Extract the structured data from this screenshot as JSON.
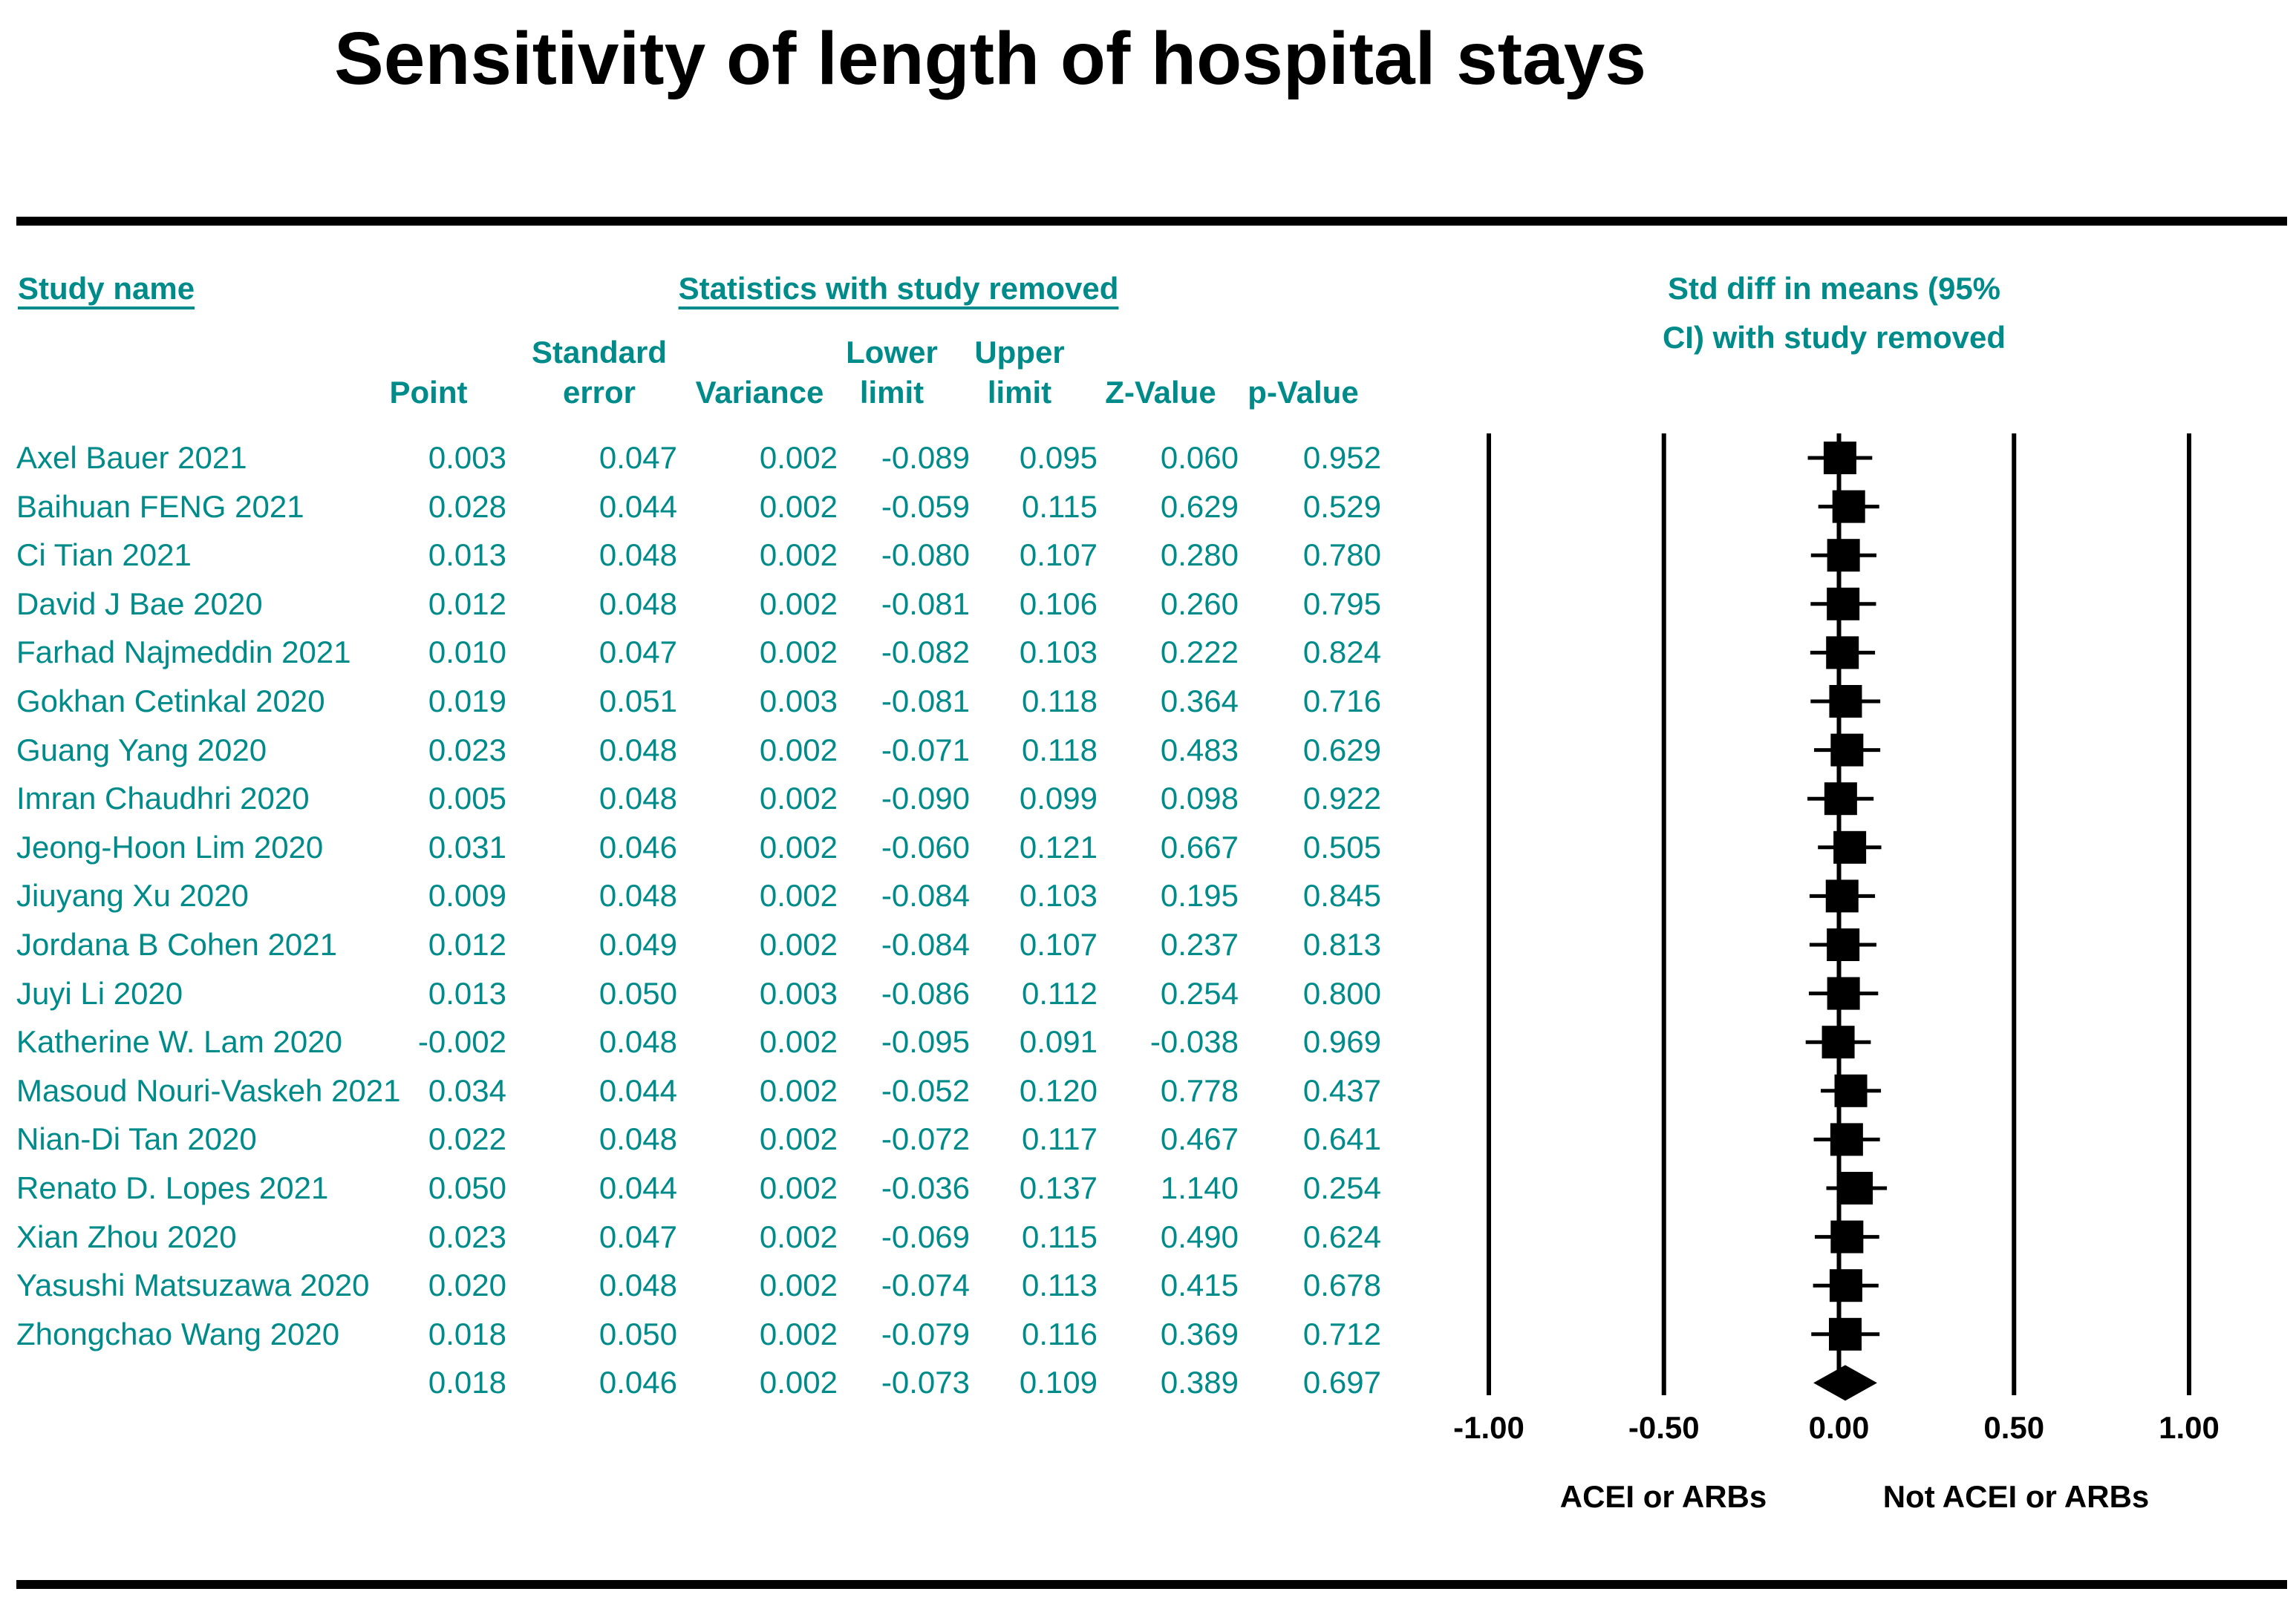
{
  "title": "Sensitivity of length of hospital stays",
  "headers": {
    "study_name": "Study name",
    "statistics_group": "Statistics with study removed",
    "plot_title_line1": "Std diff in means (95%",
    "plot_title_line2": "CI) with study removed",
    "columns": [
      {
        "line1": "",
        "line2": "Point"
      },
      {
        "line1": "Standard",
        "line2": "error"
      },
      {
        "line1": "",
        "line2": "Variance"
      },
      {
        "line1": "Lower",
        "line2": "limit"
      },
      {
        "line1": "Upper",
        "line2": "limit"
      },
      {
        "line1": "",
        "line2": "Z-Value"
      },
      {
        "line1": "",
        "line2": "p-Value"
      }
    ]
  },
  "rows": [
    {
      "study": "Axel Bauer 2021",
      "point": "0.003",
      "se": "0.047",
      "variance": "0.002",
      "lower": "-0.089",
      "upper": "0.095",
      "z": "0.060",
      "p": "0.952"
    },
    {
      "study": "Baihuan FENG 2021",
      "point": "0.028",
      "se": "0.044",
      "variance": "0.002",
      "lower": "-0.059",
      "upper": "0.115",
      "z": "0.629",
      "p": "0.529"
    },
    {
      "study": "Ci Tian 2021",
      "point": "0.013",
      "se": "0.048",
      "variance": "0.002",
      "lower": "-0.080",
      "upper": "0.107",
      "z": "0.280",
      "p": "0.780"
    },
    {
      "study": "David J Bae 2020",
      "point": "0.012",
      "se": "0.048",
      "variance": "0.002",
      "lower": "-0.081",
      "upper": "0.106",
      "z": "0.260",
      "p": "0.795"
    },
    {
      "study": "Farhad Najmeddin 2021",
      "point": "0.010",
      "se": "0.047",
      "variance": "0.002",
      "lower": "-0.082",
      "upper": "0.103",
      "z": "0.222",
      "p": "0.824"
    },
    {
      "study": "Gokhan Cetinkal 2020",
      "point": "0.019",
      "se": "0.051",
      "variance": "0.003",
      "lower": "-0.081",
      "upper": "0.118",
      "z": "0.364",
      "p": "0.716"
    },
    {
      "study": "Guang Yang 2020",
      "point": "0.023",
      "se": "0.048",
      "variance": "0.002",
      "lower": "-0.071",
      "upper": "0.118",
      "z": "0.483",
      "p": "0.629"
    },
    {
      "study": "Imran Chaudhri 2020",
      "point": "0.005",
      "se": "0.048",
      "variance": "0.002",
      "lower": "-0.090",
      "upper": "0.099",
      "z": "0.098",
      "p": "0.922"
    },
    {
      "study": "Jeong-Hoon Lim 2020",
      "point": "0.031",
      "se": "0.046",
      "variance": "0.002",
      "lower": "-0.060",
      "upper": "0.121",
      "z": "0.667",
      "p": "0.505"
    },
    {
      "study": "Jiuyang Xu 2020",
      "point": "0.009",
      "se": "0.048",
      "variance": "0.002",
      "lower": "-0.084",
      "upper": "0.103",
      "z": "0.195",
      "p": "0.845"
    },
    {
      "study": "Jordana B Cohen 2021",
      "point": "0.012",
      "se": "0.049",
      "variance": "0.002",
      "lower": "-0.084",
      "upper": "0.107",
      "z": "0.237",
      "p": "0.813"
    },
    {
      "study": "Juyi Li 2020",
      "point": "0.013",
      "se": "0.050",
      "variance": "0.003",
      "lower": "-0.086",
      "upper": "0.112",
      "z": "0.254",
      "p": "0.800"
    },
    {
      "study": "Katherine W. Lam 2020",
      "point": "-0.002",
      "se": "0.048",
      "variance": "0.002",
      "lower": "-0.095",
      "upper": "0.091",
      "z": "-0.038",
      "p": "0.969"
    },
    {
      "study": "Masoud Nouri-Vaskeh 2021",
      "point": "0.034",
      "se": "0.044",
      "variance": "0.002",
      "lower": "-0.052",
      "upper": "0.120",
      "z": "0.778",
      "p": "0.437"
    },
    {
      "study": "Nian-Di Tan 2020",
      "point": "0.022",
      "se": "0.048",
      "variance": "0.002",
      "lower": "-0.072",
      "upper": "0.117",
      "z": "0.467",
      "p": "0.641"
    },
    {
      "study": "Renato D. Lopes 2021",
      "point": "0.050",
      "se": "0.044",
      "variance": "0.002",
      "lower": "-0.036",
      "upper": "0.137",
      "z": "1.140",
      "p": "0.254"
    },
    {
      "study": "Xian Zhou 2020",
      "point": "0.023",
      "se": "0.047",
      "variance": "0.002",
      "lower": "-0.069",
      "upper": "0.115",
      "z": "0.490",
      "p": "0.624"
    },
    {
      "study": "Yasushi Matsuzawa 2020",
      "point": "0.020",
      "se": "0.048",
      "variance": "0.002",
      "lower": "-0.074",
      "upper": "0.113",
      "z": "0.415",
      "p": "0.678"
    },
    {
      "study": "Zhongchao Wang 2020",
      "point": "0.018",
      "se": "0.050",
      "variance": "0.002",
      "lower": "-0.079",
      "upper": "0.116",
      "z": "0.369",
      "p": "0.712"
    }
  ],
  "summary": {
    "study": "",
    "point": "0.018",
    "se": "0.046",
    "variance": "0.002",
    "lower": "-0.073",
    "upper": "0.109",
    "z": "0.389",
    "p": "0.697"
  },
  "chart_data": {
    "type": "forest",
    "title": "Std diff in means (95% CI) with study removed",
    "xlim": [
      -1.0,
      1.0
    ],
    "ticks": [
      -1.0,
      -0.5,
      0.0,
      0.5,
      1.0
    ],
    "tick_labels": [
      "-1.00",
      "-0.50",
      "0.00",
      "0.50",
      "1.00"
    ],
    "left_label": "ACEI or ARBs",
    "right_label": "Not ACEI or ARBs",
    "studies": [
      "Axel Bauer 2021",
      "Baihuan FENG 2021",
      "Ci Tian 2021",
      "David J Bae 2020",
      "Farhad Najmeddin 2021",
      "Gokhan Cetinkal 2020",
      "Guang Yang 2020",
      "Imran Chaudhri 2020",
      "Jeong-Hoon Lim 2020",
      "Jiuyang Xu 2020",
      "Jordana B Cohen 2021",
      "Juyi Li 2020",
      "Katherine W. Lam 2020",
      "Masoud Nouri-Vaskeh 2021",
      "Nian-Di Tan 2020",
      "Renato D. Lopes 2021",
      "Xian Zhou 2020",
      "Yasushi Matsuzawa 2020",
      "Zhongchao Wang 2020"
    ],
    "point": [
      0.003,
      0.028,
      0.013,
      0.012,
      0.01,
      0.019,
      0.023,
      0.005,
      0.031,
      0.009,
      0.012,
      0.013,
      -0.002,
      0.034,
      0.022,
      0.05,
      0.023,
      0.02,
      0.018
    ],
    "lower": [
      -0.089,
      -0.059,
      -0.08,
      -0.081,
      -0.082,
      -0.081,
      -0.071,
      -0.09,
      -0.06,
      -0.084,
      -0.084,
      -0.086,
      -0.095,
      -0.052,
      -0.072,
      -0.036,
      -0.069,
      -0.074,
      -0.079
    ],
    "upper": [
      0.095,
      0.115,
      0.107,
      0.106,
      0.103,
      0.118,
      0.118,
      0.099,
      0.121,
      0.103,
      0.107,
      0.112,
      0.091,
      0.12,
      0.117,
      0.137,
      0.115,
      0.113,
      0.116
    ],
    "summary": {
      "point": 0.018,
      "lower": -0.073,
      "upper": 0.109
    },
    "colors": {
      "text": "#008b8b",
      "marks": "#000000"
    }
  }
}
